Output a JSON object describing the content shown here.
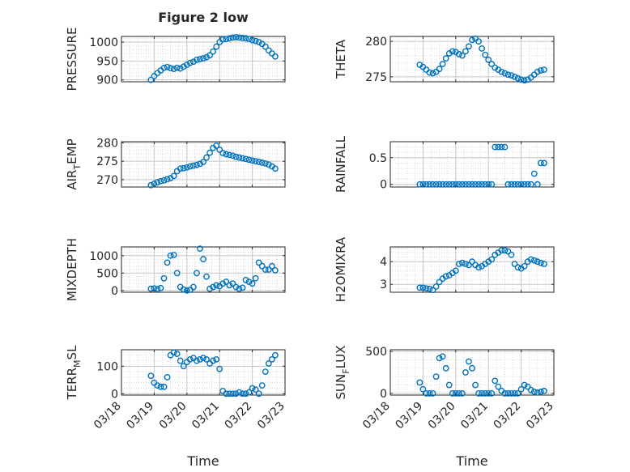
{
  "figure": {
    "title": "Figure 2 low",
    "xlabel": "Time",
    "marker_color": "#0072bd",
    "axis_color": "#262626",
    "grid_color": "#d9d9d9"
  },
  "chart_data": [
    {
      "id": "pressure",
      "type": "scatter",
      "title": "Figure 2 low",
      "xlabel": "",
      "ylabel": "PRESSURE",
      "xlim": [
        "03/18",
        "03/23"
      ],
      "ylim": [
        895,
        1015
      ],
      "yticks": [
        900,
        950,
        1000
      ],
      "ytick_labels": [
        "900",
        "950",
        "1000"
      ],
      "xticks": [
        "03/18",
        "03/19",
        "03/20",
        "03/21",
        "03/22",
        "03/23"
      ],
      "show_xtick_labels": false,
      "grid": true,
      "minor_grid": true,
      "x": [
        "03/18 21:36",
        "03/19 00:00",
        "03/19 02:24",
        "03/19 04:48",
        "03/19 07:12",
        "03/19 09:36",
        "03/19 12:00",
        "03/19 14:24",
        "03/19 16:48",
        "03/19 19:12",
        "03/19 21:36",
        "03/20 00:00",
        "03/20 02:24",
        "03/20 04:48",
        "03/20 07:12",
        "03/20 09:36",
        "03/20 12:00",
        "03/20 14:24",
        "03/20 16:48",
        "03/20 19:12",
        "03/20 21:36",
        "03/21 00:00",
        "03/21 02:24",
        "03/21 04:48",
        "03/21 07:12",
        "03/21 09:36",
        "03/21 12:00",
        "03/21 14:24",
        "03/21 16:48",
        "03/21 19:12",
        "03/21 21:36",
        "03/22 00:00",
        "03/22 02:24",
        "03/22 04:48",
        "03/22 07:12",
        "03/22 09:36",
        "03/22 12:00",
        "03/22 14:24",
        "03/22 16:48"
      ],
      "y": [
        900,
        910,
        918,
        925,
        932,
        934,
        931,
        929,
        932,
        930,
        935,
        940,
        945,
        948,
        953,
        955,
        957,
        960,
        965,
        975,
        988,
        1000,
        1007,
        1008,
        1010,
        1012,
        1013,
        1012,
        1011,
        1010,
        1008,
        1005,
        1003,
        1000,
        995,
        988,
        978,
        970,
        962
      ]
    },
    {
      "id": "theta",
      "type": "scatter",
      "title": "",
      "xlabel": "",
      "ylabel": "THETA",
      "xlim": [
        "03/18",
        "03/23"
      ],
      "ylim": [
        274.3,
        280.7
      ],
      "yticks": [
        275,
        280
      ],
      "ytick_labels": [
        "275",
        "280"
      ],
      "xticks": [
        "03/18",
        "03/19",
        "03/20",
        "03/21",
        "03/22",
        "03/23"
      ],
      "show_xtick_labels": false,
      "grid": true,
      "minor_grid": true,
      "x": [
        "03/18 21:36",
        "03/19 00:00",
        "03/19 02:24",
        "03/19 04:48",
        "03/19 07:12",
        "03/19 09:36",
        "03/19 12:00",
        "03/19 14:24",
        "03/19 16:48",
        "03/19 19:12",
        "03/19 21:36",
        "03/20 00:00",
        "03/20 02:24",
        "03/20 04:48",
        "03/20 07:12",
        "03/20 09:36",
        "03/20 12:00",
        "03/20 14:24",
        "03/20 16:48",
        "03/20 19:12",
        "03/20 21:36",
        "03/21 00:00",
        "03/21 02:24",
        "03/21 04:48",
        "03/21 07:12",
        "03/21 09:36",
        "03/21 12:00",
        "03/21 14:24",
        "03/21 16:48",
        "03/21 19:12",
        "03/21 21:36",
        "03/22 00:00",
        "03/22 02:24",
        "03/22 04:48",
        "03/22 07:12",
        "03/22 09:36",
        "03/22 12:00",
        "03/22 14:24",
        "03/22 16:48"
      ],
      "y": [
        276.7,
        276.4,
        276.0,
        275.6,
        275.5,
        275.7,
        276.1,
        276.8,
        277.6,
        278.3,
        278.6,
        278.5,
        278.2,
        278.0,
        278.6,
        279.3,
        280.2,
        280.4,
        280.0,
        279.0,
        278.1,
        277.4,
        276.8,
        276.3,
        276.0,
        275.7,
        275.5,
        275.3,
        275.2,
        275.0,
        274.8,
        274.6,
        274.5,
        274.6,
        274.9,
        275.3,
        275.7,
        275.9,
        276.0
      ]
    },
    {
      "id": "air_temp",
      "type": "scatter",
      "title": "",
      "xlabel": "",
      "ylabel": "AIR_TEMP",
      "xlim": [
        "03/18",
        "03/23"
      ],
      "ylim": [
        268,
        280.3
      ],
      "yticks": [
        270,
        275,
        280
      ],
      "ytick_labels": [
        "270",
        "275",
        "280"
      ],
      "xticks": [
        "03/18",
        "03/19",
        "03/20",
        "03/21",
        "03/22",
        "03/23"
      ],
      "show_xtick_labels": false,
      "grid": true,
      "minor_grid": true,
      "x": [
        "03/18 21:36",
        "03/19 00:00",
        "03/19 02:24",
        "03/19 04:48",
        "03/19 07:12",
        "03/19 09:36",
        "03/19 12:00",
        "03/19 14:24",
        "03/19 16:48",
        "03/19 19:12",
        "03/19 21:36",
        "03/20 00:00",
        "03/20 02:24",
        "03/20 04:48",
        "03/20 07:12",
        "03/20 09:36",
        "03/20 12:00",
        "03/20 14:24",
        "03/20 16:48",
        "03/20 19:12",
        "03/20 21:36",
        "03/21 00:00",
        "03/21 02:24",
        "03/21 04:48",
        "03/21 07:12",
        "03/21 09:36",
        "03/21 12:00",
        "03/21 14:24",
        "03/21 16:48",
        "03/21 19:12",
        "03/21 21:36",
        "03/22 00:00",
        "03/22 02:24",
        "03/22 04:48",
        "03/22 07:12",
        "03/22 09:36",
        "03/22 12:00",
        "03/22 14:24",
        "03/22 16:48"
      ],
      "y": [
        268.5,
        268.9,
        269.3,
        269.6,
        269.8,
        270.1,
        270.4,
        271.0,
        272.3,
        273.0,
        273.1,
        273.3,
        273.6,
        273.8,
        274.0,
        274.3,
        274.8,
        276.0,
        277.3,
        278.6,
        279.2,
        278.1,
        277.2,
        276.9,
        276.7,
        276.5,
        276.2,
        276.0,
        275.8,
        275.6,
        275.4,
        275.2,
        275.0,
        274.8,
        274.6,
        274.4,
        274.1,
        273.6,
        273.0
      ]
    },
    {
      "id": "rainfall",
      "type": "scatter",
      "title": "",
      "xlabel": "",
      "ylabel": "RAINFALL",
      "xlim": [
        "03/18",
        "03/23"
      ],
      "ylim": [
        -0.05,
        0.8
      ],
      "yticks": [
        0,
        0.5
      ],
      "ytick_labels": [
        "0",
        "0.5"
      ],
      "xticks": [
        "03/18",
        "03/19",
        "03/20",
        "03/21",
        "03/22",
        "03/23"
      ],
      "show_xtick_labels": false,
      "grid": true,
      "minor_grid": true,
      "x": [
        "03/18 21:36",
        "03/19 00:00",
        "03/19 02:24",
        "03/19 04:48",
        "03/19 07:12",
        "03/19 09:36",
        "03/19 12:00",
        "03/19 14:24",
        "03/19 16:48",
        "03/19 19:12",
        "03/19 21:36",
        "03/20 00:00",
        "03/20 02:24",
        "03/20 04:48",
        "03/20 07:12",
        "03/20 09:36",
        "03/20 12:00",
        "03/20 14:24",
        "03/20 16:48",
        "03/20 19:12",
        "03/20 21:36",
        "03/21 00:00",
        "03/21 02:24",
        "03/21 04:48",
        "03/21 07:12",
        "03/21 09:36",
        "03/21 12:00",
        "03/21 14:24",
        "03/21 16:48",
        "03/21 19:12",
        "03/21 21:36",
        "03/22 00:00",
        "03/22 02:24",
        "03/22 04:48",
        "03/22 07:12",
        "03/22 09:36",
        "03/22 12:00",
        "03/22 14:24",
        "03/22 16:48"
      ],
      "y": [
        0,
        0,
        0,
        0,
        0,
        0,
        0,
        0,
        0,
        0,
        0,
        0,
        0,
        0,
        0,
        0,
        0,
        0,
        0,
        0,
        0,
        0,
        0,
        0.7,
        0.7,
        0.7,
        0.7,
        0,
        0,
        0,
        0,
        0,
        0,
        0,
        0,
        0.2,
        0,
        0.4,
        0.4
      ]
    },
    {
      "id": "mixdepth",
      "type": "scatter",
      "title": "",
      "xlabel": "",
      "ylabel": "MIXDEPTH",
      "xlim": [
        "03/18",
        "03/23"
      ],
      "ylim": [
        -50,
        1250
      ],
      "yticks": [
        0,
        500,
        1000
      ],
      "ytick_labels": [
        "0",
        "500",
        "1000"
      ],
      "xticks": [
        "03/18",
        "03/19",
        "03/20",
        "03/21",
        "03/22",
        "03/23"
      ],
      "show_xtick_labels": false,
      "grid": true,
      "minor_grid": true,
      "x": [
        "03/18 21:36",
        "03/19 00:00",
        "03/19 02:24",
        "03/19 04:48",
        "03/19 07:12",
        "03/19 09:36",
        "03/19 12:00",
        "03/19 14:24",
        "03/19 16:48",
        "03/19 19:12",
        "03/19 21:36",
        "03/20 00:00",
        "03/20 02:24",
        "03/20 04:48",
        "03/20 07:12",
        "03/20 09:36",
        "03/20 12:00",
        "03/20 14:24",
        "03/20 16:48",
        "03/20 19:12",
        "03/20 21:36",
        "03/21 00:00",
        "03/21 02:24",
        "03/21 04:48",
        "03/21 07:12",
        "03/21 09:36",
        "03/21 12:00",
        "03/21 14:24",
        "03/21 16:48",
        "03/21 19:12",
        "03/21 21:36",
        "03/22 00:00",
        "03/22 02:24",
        "03/22 04:48",
        "03/22 07:12",
        "03/22 09:36",
        "03/22 12:00",
        "03/22 14:24",
        "03/22 16:48"
      ],
      "y": [
        50,
        60,
        40,
        70,
        350,
        800,
        1000,
        1020,
        500,
        100,
        30,
        0,
        20,
        100,
        500,
        1200,
        900,
        400,
        50,
        100,
        150,
        120,
        200,
        250,
        150,
        200,
        100,
        50,
        80,
        300,
        250,
        200,
        350,
        800,
        700,
        600,
        600,
        700,
        580
      ]
    },
    {
      "id": "h2omixra",
      "type": "scatter",
      "title": "",
      "xlabel": "",
      "ylabel": "H2OMIXRA",
      "xlim": [
        "03/18",
        "03/23"
      ],
      "ylim": [
        2.65,
        4.65
      ],
      "yticks": [
        3,
        4
      ],
      "ytick_labels": [
        "3",
        "4"
      ],
      "xticks": [
        "03/18",
        "03/19",
        "03/20",
        "03/21",
        "03/22",
        "03/23"
      ],
      "show_xtick_labels": false,
      "grid": true,
      "minor_grid": true,
      "x": [
        "03/18 21:36",
        "03/19 00:00",
        "03/19 02:24",
        "03/19 04:48",
        "03/19 07:12",
        "03/19 09:36",
        "03/19 12:00",
        "03/19 14:24",
        "03/19 16:48",
        "03/19 19:12",
        "03/19 21:36",
        "03/20 00:00",
        "03/20 02:24",
        "03/20 04:48",
        "03/20 07:12",
        "03/20 09:36",
        "03/20 12:00",
        "03/20 14:24",
        "03/20 16:48",
        "03/20 19:12",
        "03/20 21:36",
        "03/21 00:00",
        "03/21 02:24",
        "03/21 04:48",
        "03/21 07:12",
        "03/21 09:36",
        "03/21 12:00",
        "03/21 14:24",
        "03/21 16:48",
        "03/21 19:12",
        "03/21 21:36",
        "03/22 00:00",
        "03/22 02:24",
        "03/22 04:48",
        "03/22 07:12",
        "03/22 09:36",
        "03/22 12:00",
        "03/22 14:24",
        "03/22 16:48"
      ],
      "y": [
        2.85,
        2.85,
        2.82,
        2.8,
        2.75,
        2.9,
        3.1,
        3.25,
        3.35,
        3.4,
        3.5,
        3.6,
        3.9,
        3.95,
        3.9,
        3.85,
        4.0,
        3.85,
        3.75,
        3.8,
        3.9,
        4.0,
        4.1,
        4.3,
        4.4,
        4.5,
        4.5,
        4.45,
        4.3,
        3.9,
        3.75,
        3.7,
        3.8,
        4.0,
        4.1,
        4.05,
        4.0,
        3.95,
        3.9
      ]
    },
    {
      "id": "terr_msl",
      "type": "scatter",
      "title": "",
      "xlabel": "Time",
      "ylabel": "TERR_MSL",
      "xlim": [
        "03/18",
        "03/23"
      ],
      "ylim": [
        -5,
        160
      ],
      "yticks": [
        0,
        100
      ],
      "ytick_labels": [
        "0",
        "100"
      ],
      "xticks": [
        "03/18",
        "03/19",
        "03/20",
        "03/21",
        "03/22",
        "03/23"
      ],
      "show_xtick_labels": true,
      "grid": true,
      "minor_grid": true,
      "x": [
        "03/18 21:36",
        "03/19 00:00",
        "03/19 02:24",
        "03/19 04:48",
        "03/19 07:12",
        "03/19 09:36",
        "03/19 12:00",
        "03/19 14:24",
        "03/19 16:48",
        "03/19 19:12",
        "03/19 21:36",
        "03/20 00:00",
        "03/20 02:24",
        "03/20 04:48",
        "03/20 07:12",
        "03/20 09:36",
        "03/20 12:00",
        "03/20 14:24",
        "03/20 16:48",
        "03/20 19:12",
        "03/20 21:36",
        "03/21 00:00",
        "03/21 02:24",
        "03/21 04:48",
        "03/21 07:12",
        "03/21 09:36",
        "03/21 12:00",
        "03/21 14:24",
        "03/21 16:48",
        "03/21 19:12",
        "03/21 21:36",
        "03/22 00:00",
        "03/22 02:24",
        "03/22 04:48",
        "03/22 07:12",
        "03/22 09:36",
        "03/22 12:00",
        "03/22 14:24",
        "03/22 16:48"
      ],
      "y": [
        65,
        40,
        30,
        25,
        25,
        60,
        140,
        150,
        145,
        120,
        100,
        115,
        125,
        130,
        120,
        125,
        130,
        125,
        110,
        120,
        125,
        90,
        10,
        0,
        0,
        0,
        0,
        5,
        0,
        0,
        5,
        20,
        15,
        0,
        30,
        80,
        110,
        125,
        140
      ]
    },
    {
      "id": "sun_flux",
      "type": "scatter",
      "title": "",
      "xlabel": "Time",
      "ylabel": "SUN_FLUX",
      "xlim": [
        "03/18",
        "03/23"
      ],
      "ylim": [
        -20,
        520
      ],
      "yticks": [
        0,
        500
      ],
      "ytick_labels": [
        "0",
        "500"
      ],
      "xticks": [
        "03/18",
        "03/19",
        "03/20",
        "03/21",
        "03/22",
        "03/23"
      ],
      "show_xtick_labels": true,
      "grid": true,
      "minor_grid": true,
      "x": [
        "03/18 21:36",
        "03/19 00:00",
        "03/19 02:24",
        "03/19 04:48",
        "03/19 07:12",
        "03/19 09:36",
        "03/19 12:00",
        "03/19 14:24",
        "03/19 16:48",
        "03/19 19:12",
        "03/19 21:36",
        "03/20 00:00",
        "03/20 02:24",
        "03/20 04:48",
        "03/20 07:12",
        "03/20 09:36",
        "03/20 12:00",
        "03/20 14:24",
        "03/20 16:48",
        "03/20 19:12",
        "03/20 21:36",
        "03/21 00:00",
        "03/21 02:24",
        "03/21 04:48",
        "03/21 07:12",
        "03/21 09:36",
        "03/21 12:00",
        "03/21 14:24",
        "03/21 16:48",
        "03/21 19:12",
        "03/21 21:36",
        "03/22 00:00",
        "03/22 02:24",
        "03/22 04:48",
        "03/22 07:12",
        "03/22 09:36",
        "03/22 12:00",
        "03/22 14:24",
        "03/22 16:48"
      ],
      "y": [
        130,
        50,
        0,
        0,
        0,
        200,
        420,
        440,
        300,
        100,
        0,
        0,
        0,
        0,
        250,
        380,
        300,
        100,
        0,
        0,
        0,
        0,
        0,
        150,
        80,
        30,
        0,
        0,
        0,
        0,
        0,
        50,
        100,
        80,
        40,
        20,
        10,
        20,
        30
      ]
    }
  ]
}
